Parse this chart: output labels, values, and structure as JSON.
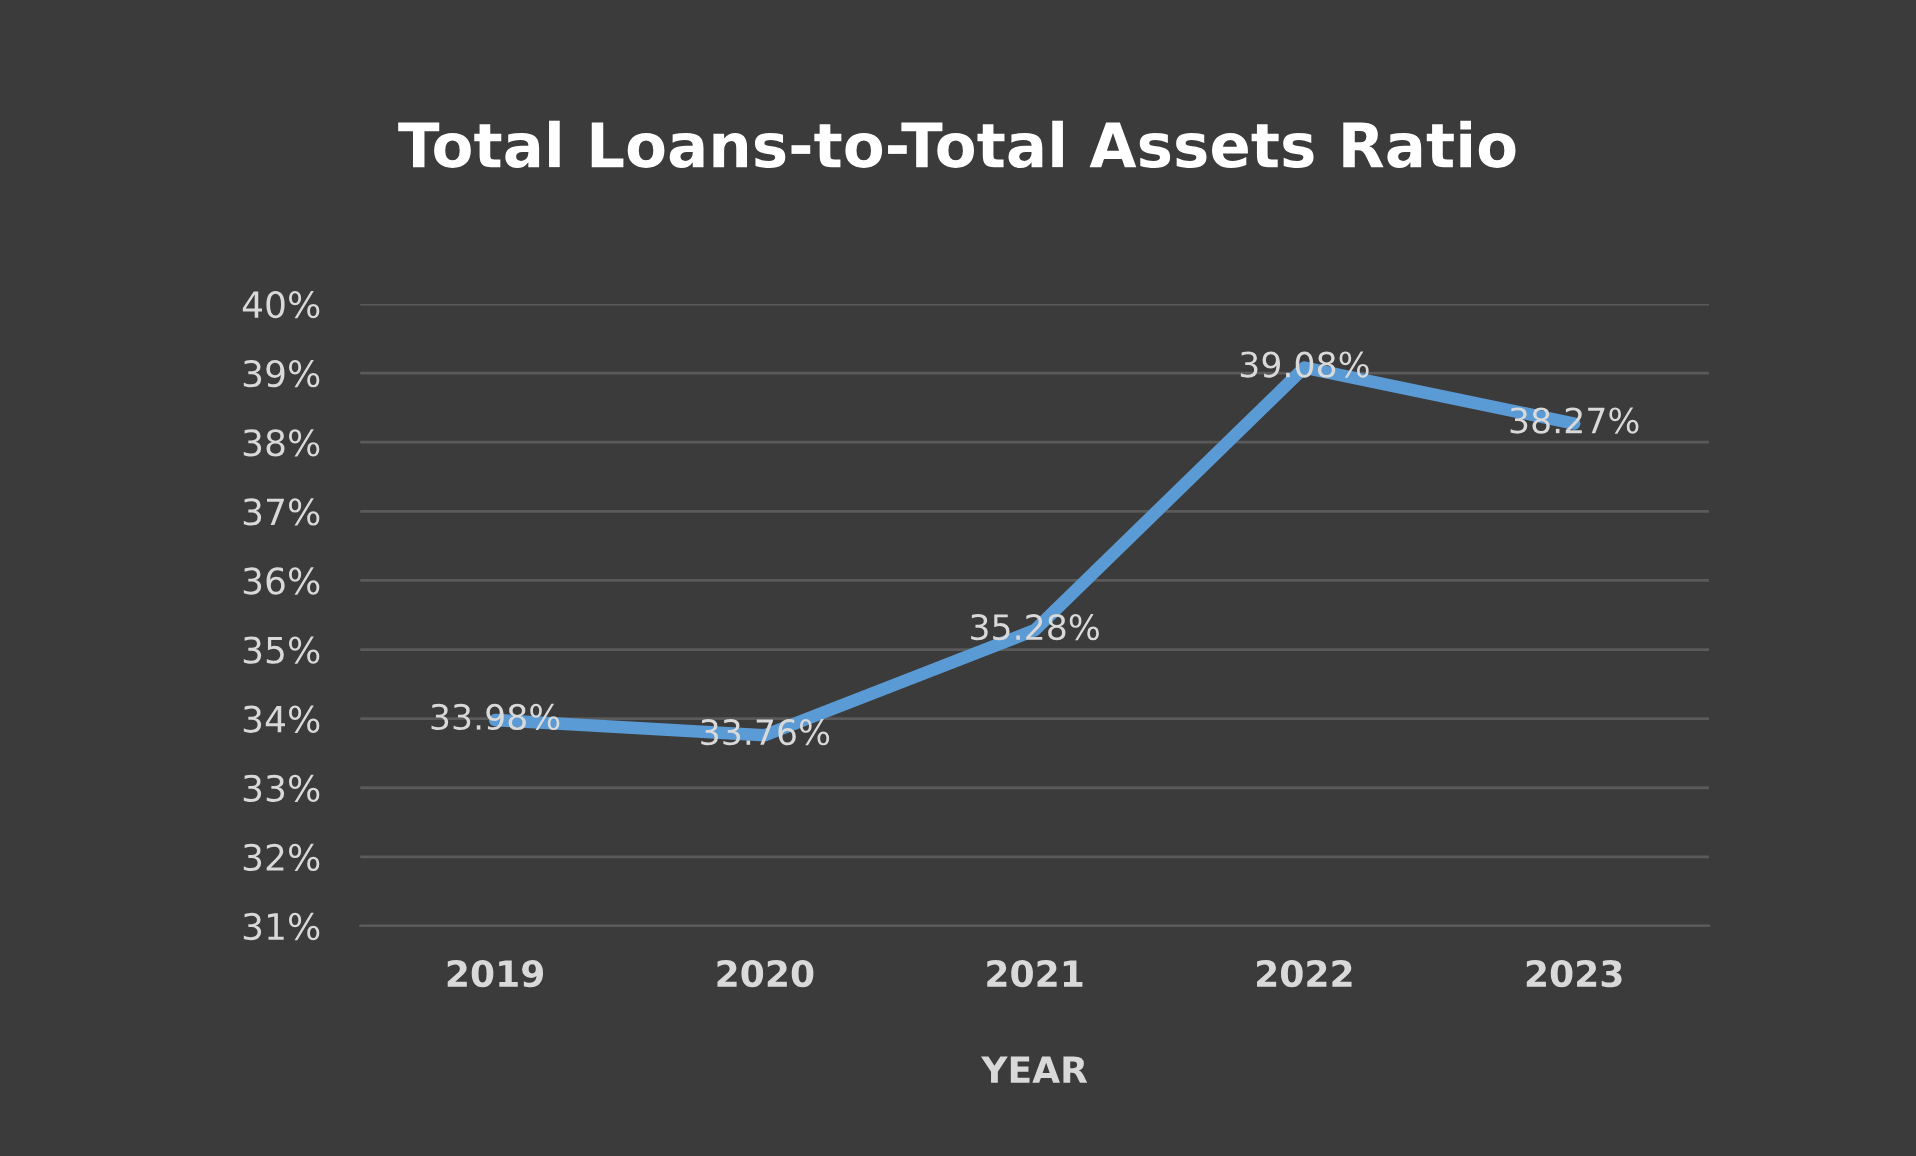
{
  "chart_data": {
    "type": "line",
    "title": "Total Loans-to-Total Assets Ratio",
    "xlabel": "YEAR",
    "categories": [
      "2019",
      "2020",
      "2021",
      "2022",
      "2023"
    ],
    "series": [
      {
        "color": "#5b9bd5",
        "values": [
          33.98,
          33.76,
          35.28,
          39.08,
          38.27
        ],
        "value_labels": [
          "33.98%",
          "33.76%",
          "35.28%",
          "39.08%",
          "38.27%"
        ]
      }
    ],
    "ylim": [
      31,
      40
    ],
    "yticks": [
      {
        "value": 31,
        "label": "31%"
      },
      {
        "value": 32,
        "label": "32%"
      },
      {
        "value": 33,
        "label": "33%"
      },
      {
        "value": 34,
        "label": "34%"
      },
      {
        "value": 35,
        "label": "35%"
      },
      {
        "value": 36,
        "label": "36%"
      },
      {
        "value": 37,
        "label": "37%"
      },
      {
        "value": 38,
        "label": "38%"
      },
      {
        "value": 39,
        "label": "39%"
      },
      {
        "value": 40,
        "label": "40%"
      }
    ],
    "grid": "y"
  }
}
